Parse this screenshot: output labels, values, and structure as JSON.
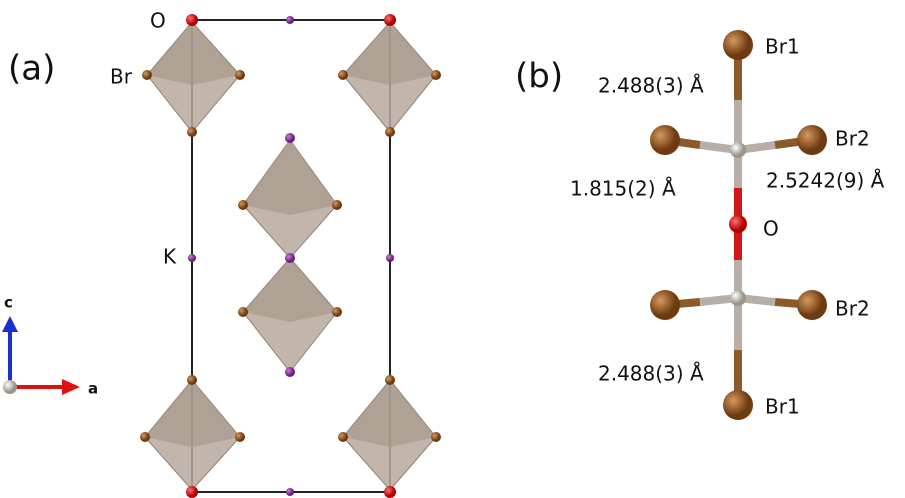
{
  "panel_a": {
    "label": "(a)",
    "atom_labels": [
      "O",
      "Br",
      "K"
    ],
    "axes": [
      "c",
      "a"
    ]
  },
  "panel_b": {
    "label": "(b)",
    "atom_labels": [
      "Br1",
      "Br2",
      "O",
      "Br2",
      "Br1"
    ],
    "bond_lengths": [
      "2.488(3) Å",
      "1.815(2) Å",
      "2.5242(9) Å",
      "2.488(3) Å"
    ]
  }
}
